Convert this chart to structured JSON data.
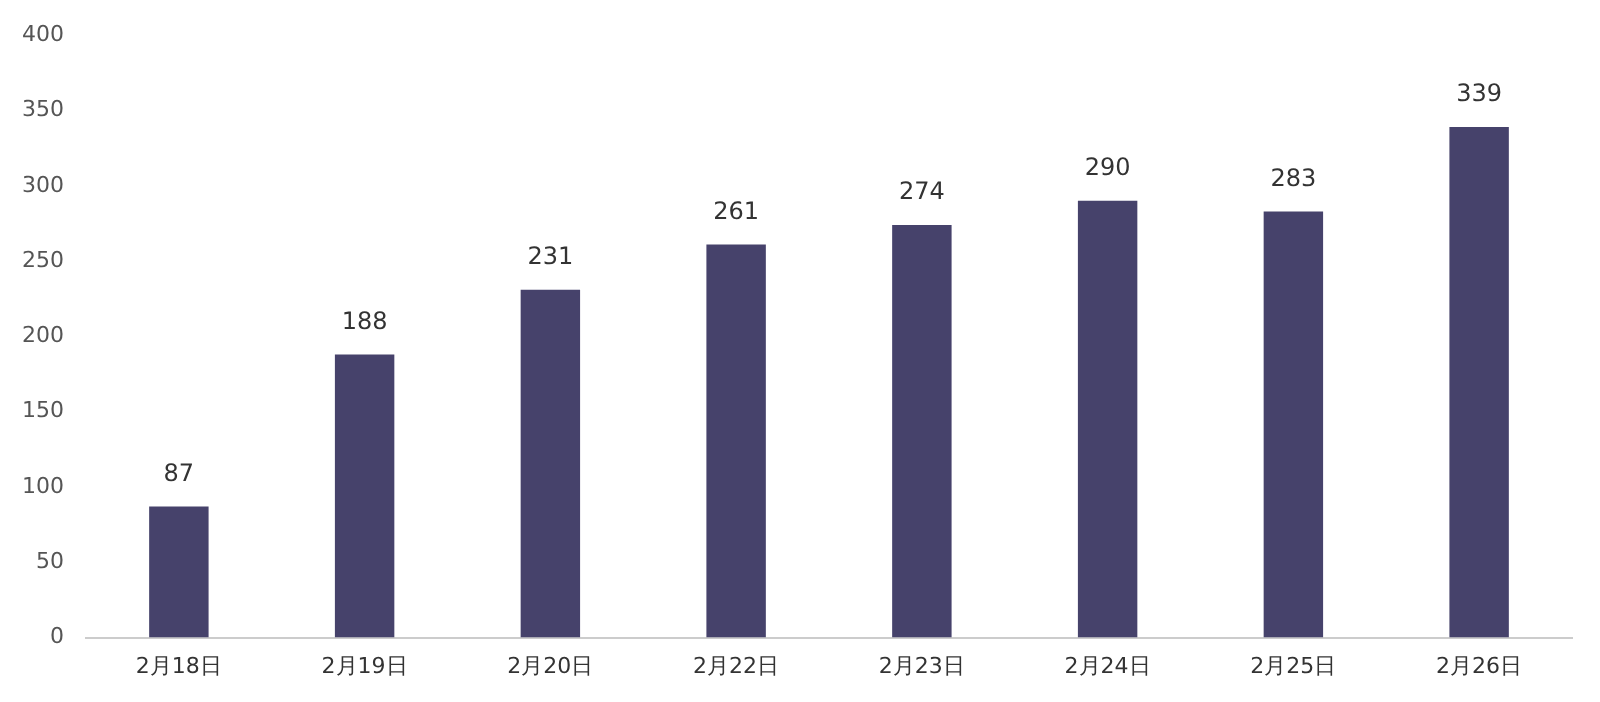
{
  "chart_data": {
    "type": "bar",
    "categories": [
      "2月18日",
      "2月19日",
      "2月20日",
      "2月22日",
      "2月23日",
      "2月24日",
      "2月25日",
      "2月26日"
    ],
    "values": [
      87,
      188,
      231,
      261,
      274,
      290,
      283,
      339
    ],
    "color": "#46426b",
    "ylim": [
      0,
      400
    ],
    "yticks": [
      0,
      50,
      100,
      150,
      200,
      250,
      300,
      350,
      400
    ],
    "grid": false,
    "legend": false,
    "data_labels": true
  }
}
